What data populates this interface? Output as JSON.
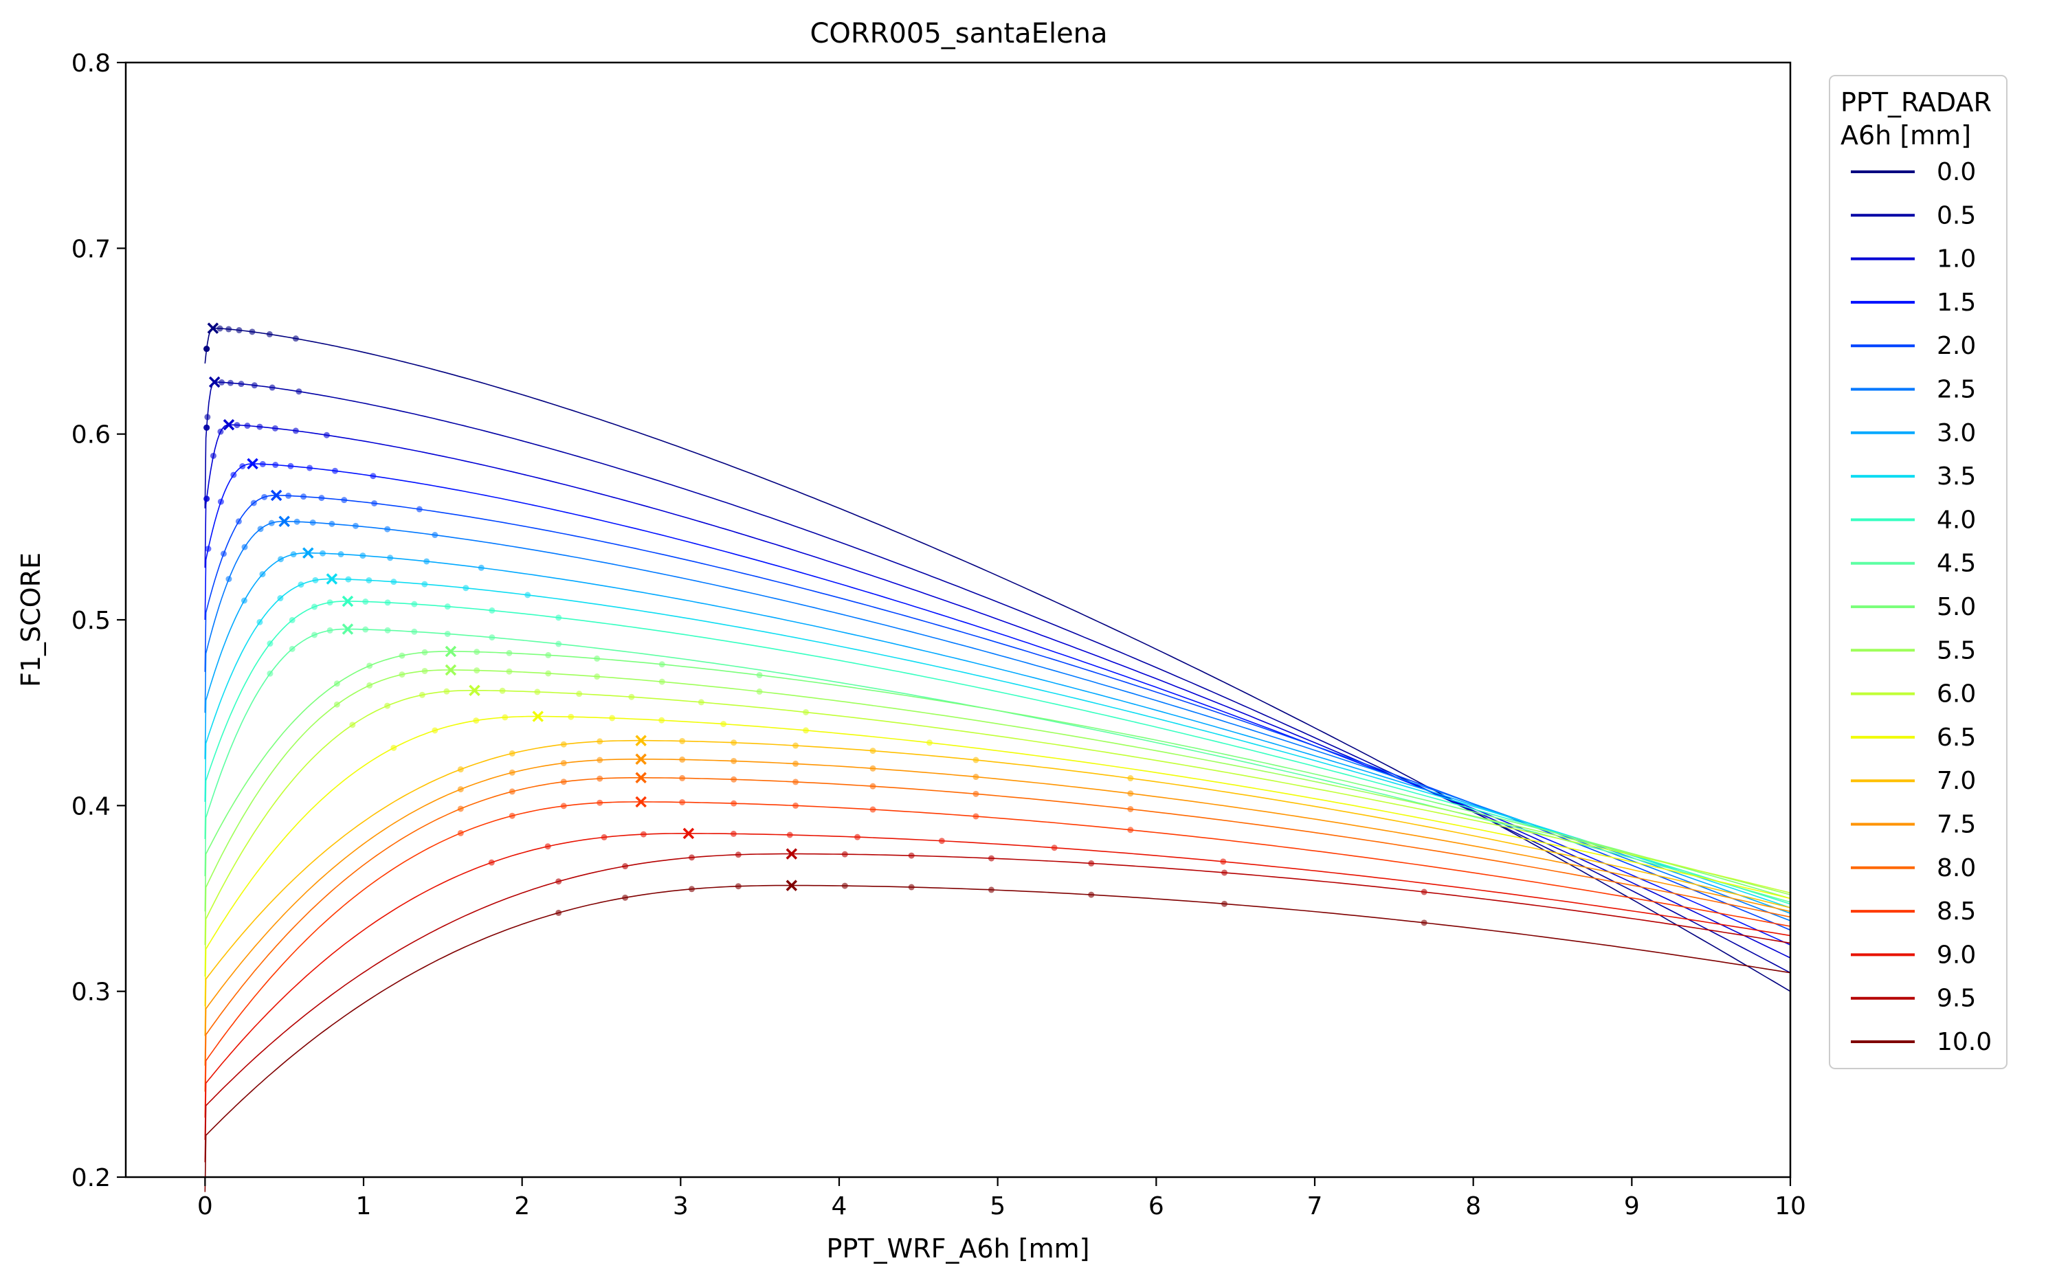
{
  "chart_data": {
    "type": "line",
    "title": "CORR005_santaElena",
    "xlabel": "PPT_WRF_A6h [mm]",
    "ylabel": "F1_SCORE",
    "xlim": [
      -0.5,
      10
    ],
    "ylim": [
      0.2,
      0.8
    ],
    "xticks": [
      "0",
      "1",
      "2",
      "3",
      "4",
      "5",
      "6",
      "7",
      "8",
      "9",
      "10"
    ],
    "yticks": [
      "0.2",
      "0.3",
      "0.4",
      "0.5",
      "0.6",
      "0.7",
      "0.8"
    ],
    "legend": {
      "title_line1": "PPT_RADAR",
      "title_line2": "A6h [mm]",
      "position": "outside-right-top"
    },
    "grid": false,
    "series": [
      {
        "name": "0.0",
        "color": "#000080",
        "start": 0.638,
        "peak": [
          0.05,
          0.657
        ],
        "end": 0.3
      },
      {
        "name": "0.5",
        "color": "#0000a5",
        "start": 0.59,
        "peak": [
          0.06,
          0.628
        ],
        "end": 0.31
      },
      {
        "name": "1.0",
        "color": "#0000d4",
        "start": 0.558,
        "peak": [
          0.15,
          0.605
        ],
        "end": 0.318
      },
      {
        "name": "1.5",
        "color": "#0010ff",
        "start": 0.53,
        "peak": [
          0.3,
          0.584
        ],
        "end": 0.325
      },
      {
        "name": "2.0",
        "color": "#0044ff",
        "start": 0.502,
        "peak": [
          0.45,
          0.567
        ],
        "end": 0.333
      },
      {
        "name": "2.5",
        "color": "#0078ff",
        "start": 0.48,
        "peak": [
          0.5,
          0.553
        ],
        "end": 0.338
      },
      {
        "name": "3.0",
        "color": "#00a8ff",
        "start": 0.455,
        "peak": [
          0.65,
          0.536
        ],
        "end": 0.342
      },
      {
        "name": "3.5",
        "color": "#0ddcf2",
        "start": 0.432,
        "peak": [
          0.8,
          0.522
        ],
        "end": 0.345
      },
      {
        "name": "4.0",
        "color": "#36ffc1",
        "start": 0.412,
        "peak": [
          0.9,
          0.51
        ],
        "end": 0.347
      },
      {
        "name": "4.5",
        "color": "#5dffa3",
        "start": 0.392,
        "peak": [
          0.9,
          0.495
        ],
        "end": 0.348
      },
      {
        "name": "5.0",
        "color": "#7bff7b",
        "start": 0.373,
        "peak": [
          1.55,
          0.483
        ],
        "end": 0.35
      },
      {
        "name": "5.5",
        "color": "#9eff5a",
        "start": 0.355,
        "peak": [
          1.55,
          0.473
        ],
        "end": 0.352
      },
      {
        "name": "6.0",
        "color": "#c1ff36",
        "start": 0.338,
        "peak": [
          1.7,
          0.462
        ],
        "end": 0.353
      },
      {
        "name": "6.5",
        "color": "#f1fc06",
        "start": 0.322,
        "peak": [
          2.1,
          0.448
        ],
        "end": 0.35
      },
      {
        "name": "7.0",
        "color": "#ffc000",
        "start": 0.306,
        "peak": [
          2.75,
          0.435
        ],
        "end": 0.345
      },
      {
        "name": "7.5",
        "color": "#ff9400",
        "start": 0.29,
        "peak": [
          2.75,
          0.425
        ],
        "end": 0.343
      },
      {
        "name": "8.0",
        "color": "#ff6800",
        "start": 0.276,
        "peak": [
          2.75,
          0.415
        ],
        "end": 0.34
      },
      {
        "name": "8.5",
        "color": "#ff3a00",
        "start": 0.262,
        "peak": [
          2.75,
          0.402
        ],
        "end": 0.335
      },
      {
        "name": "9.0",
        "color": "#e81200",
        "start": 0.25,
        "peak": [
          3.05,
          0.385
        ],
        "end": 0.33
      },
      {
        "name": "9.5",
        "color": "#b50000",
        "start": 0.238,
        "peak": [
          3.7,
          0.374
        ],
        "end": 0.326
      },
      {
        "name": "10.0",
        "color": "#800000",
        "start": 0.222,
        "peak": [
          3.7,
          0.357
        ],
        "end": 0.31
      }
    ]
  }
}
